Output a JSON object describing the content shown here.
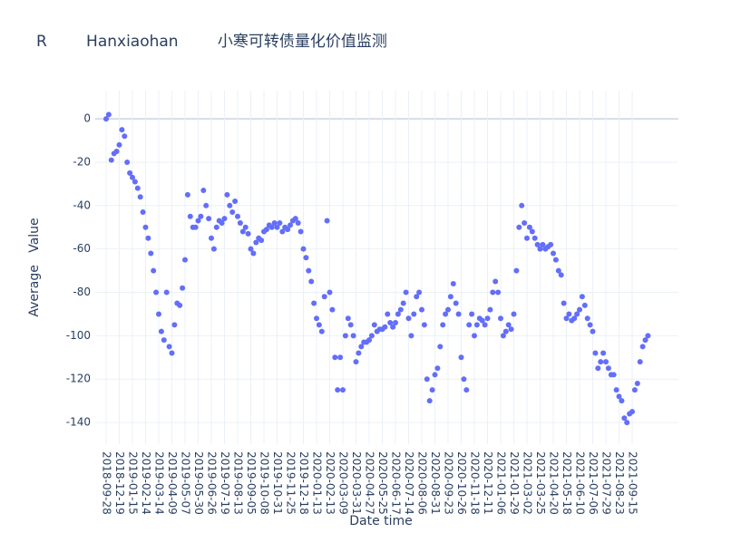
{
  "chart_data": {
    "type": "scatter",
    "title": "R        Hanxiaohan        小寒可转债量化价值监测",
    "x_label": "Date time",
    "y_label": "Average   Value",
    "color": "#636efa",
    "grid": true,
    "ylim": [
      -150,
      13
    ],
    "yticks": [
      -140,
      -120,
      -100,
      -80,
      -60,
      -40,
      -20,
      0
    ],
    "categories": [
      "2018-09-28",
      null,
      null,
      null,
      null,
      "2018-12-19",
      null,
      null,
      null,
      null,
      "2019-01-15",
      null,
      null,
      null,
      null,
      "2019-02-14",
      null,
      null,
      null,
      null,
      "2019-03-14",
      null,
      null,
      null,
      null,
      "2019-04-09",
      null,
      null,
      null,
      null,
      "2019-05-07",
      null,
      null,
      null,
      null,
      "2019-05-30",
      null,
      null,
      null,
      null,
      "2019-06-26",
      null,
      null,
      null,
      null,
      "2019-07-19",
      null,
      null,
      null,
      null,
      "2019-08-13",
      null,
      null,
      null,
      null,
      "2019-09-05",
      null,
      null,
      null,
      null,
      "2019-10-08",
      null,
      null,
      null,
      null,
      "2019-10-31",
      null,
      null,
      null,
      null,
      "2019-11-25",
      null,
      null,
      null,
      null,
      "2019-12-18",
      null,
      null,
      null,
      null,
      "2020-01-13",
      null,
      null,
      null,
      null,
      "2020-02-13",
      null,
      null,
      null,
      null,
      "2020-03-09",
      null,
      null,
      null,
      null,
      "2020-03-31",
      null,
      null,
      null,
      null,
      "2020-04-27",
      null,
      null,
      null,
      null,
      "2020-05-25",
      null,
      null,
      null,
      null,
      "2020-06-17",
      null,
      null,
      null,
      null,
      "2020-07-14",
      null,
      null,
      null,
      null,
      "2020-08-06",
      null,
      null,
      null,
      null,
      "2020-08-31",
      null,
      null,
      null,
      null,
      "2020-09-23",
      null,
      null,
      null,
      null,
      "2020-10-26",
      null,
      null,
      null,
      null,
      "2020-11-18",
      null,
      null,
      null,
      null,
      "2020-12-11",
      null,
      null,
      null,
      null,
      "2021-01-06",
      null,
      null,
      null,
      null,
      "2021-01-29",
      null,
      null,
      null,
      null,
      "2021-03-02",
      null,
      null,
      null,
      null,
      "2021-03-25",
      null,
      null,
      null,
      null,
      "2021-04-20",
      null,
      null,
      null,
      null,
      "2021-05-18",
      null,
      null,
      null,
      null,
      "2021-06-10",
      null,
      null,
      null,
      null,
      "2021-07-06",
      null,
      null,
      null,
      null,
      "2021-07-29",
      null,
      null,
      null,
      null,
      "2021-08-23",
      null,
      null,
      null,
      null,
      "2021-09-15",
      null,
      null,
      null,
      null,
      null,
      null
    ],
    "values": [
      0,
      2,
      -19,
      -16,
      -15,
      -12,
      -5,
      -8,
      -20,
      -25,
      -27,
      -29,
      -32,
      -36,
      -43,
      -50,
      -55,
      -62,
      -70,
      -80,
      -90,
      -98,
      -102,
      -80,
      -105,
      -108,
      -95,
      -85,
      -86,
      -78,
      -65,
      -35,
      -45,
      -50,
      -50,
      -47,
      -45,
      -33,
      -40,
      -46,
      -55,
      -60,
      -50,
      -47,
      -48,
      -46,
      -35,
      -40,
      -43,
      -38,
      -45,
      -48,
      -52,
      -50,
      -53,
      -60,
      -62,
      -57,
      -55,
      -56,
      -52,
      -51,
      -49,
      -50,
      -48,
      -50,
      -48,
      -52,
      -50,
      -51,
      -49,
      -47,
      -46,
      -48,
      -52,
      -60,
      -64,
      -70,
      -75,
      -85,
      -92,
      -95,
      -98,
      -82,
      -47,
      -80,
      -88,
      -110,
      -125,
      -110,
      -125,
      -100,
      -92,
      -95,
      -100,
      -112,
      -108,
      -105,
      -103,
      -103,
      -102,
      -100,
      -95,
      -98,
      -97,
      -97,
      -96,
      -90,
      -94,
      -96,
      -94,
      -90,
      -88,
      -85,
      -80,
      -92,
      -100,
      -90,
      -82,
      -80,
      -88,
      -95,
      -120,
      -130,
      -125,
      -118,
      -115,
      -105,
      -95,
      -90,
      -88,
      -82,
      -76,
      -85,
      -90,
      -110,
      -120,
      -125,
      -95,
      -90,
      -100,
      -95,
      -92,
      -93,
      -95,
      -92,
      -88,
      -80,
      -75,
      -80,
      -92,
      -100,
      -98,
      -95,
      -97,
      -90,
      -70,
      -50,
      -40,
      -48,
      -55,
      -50,
      -52,
      -55,
      -58,
      -60,
      -58,
      -60,
      -59,
      -58,
      -62,
      -65,
      -70,
      -72,
      -85,
      -92,
      -90,
      -93,
      -92,
      -90,
      -88,
      -82,
      -86,
      -92,
      -95,
      -98,
      -108,
      -115,
      -112,
      -108,
      -112,
      -115,
      -118,
      -118,
      -125,
      -128,
      -130,
      -138,
      -140,
      -136,
      -135,
      -125,
      -122,
      -112,
      -105,
      -102,
      -100
    ]
  }
}
